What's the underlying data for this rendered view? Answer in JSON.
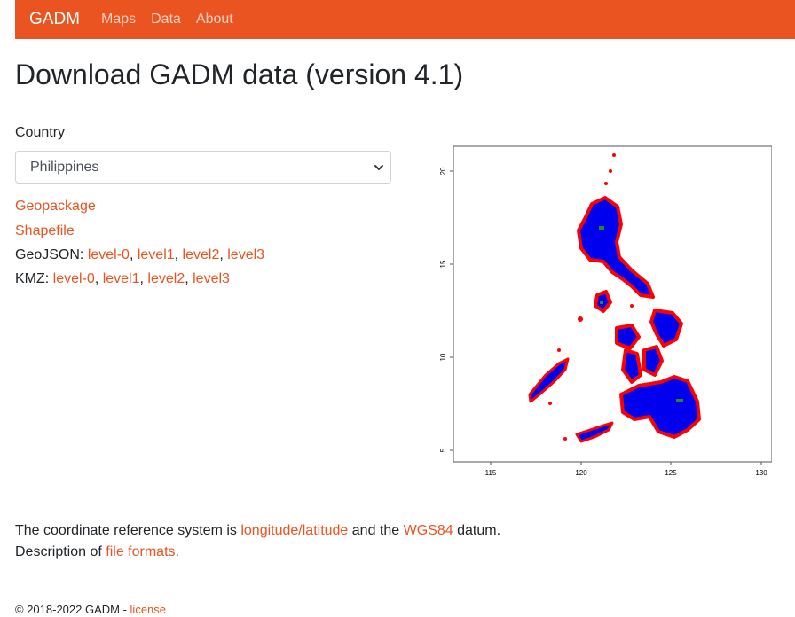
{
  "nav": {
    "brand": "GADM",
    "links": [
      "Maps",
      "Data",
      "About"
    ]
  },
  "page_title": "Download GADM data (version 4.1)",
  "country": {
    "label": "Country",
    "selected": "Philippines"
  },
  "downloads": {
    "geopackage": "Geopackage",
    "shapefile": "Shapefile",
    "geojson_label": "GeoJSON:",
    "kmz_label": "KMZ:",
    "levels": [
      "level-0",
      "level1",
      "level2",
      "level3"
    ]
  },
  "map": {
    "x_ticks": [
      "115",
      "120",
      "125",
      "130"
    ],
    "y_ticks": [
      "20",
      "15",
      "10",
      "5"
    ],
    "colors": {
      "fill": "#0000ee",
      "outline": "#ff0000",
      "inner": "#228b22"
    }
  },
  "crs": {
    "prefix": "The coordinate reference system is",
    "lonlat": "longitude/latitude",
    "middle": "and the",
    "datum_link": "WGS84",
    "suffix": "datum."
  },
  "formats": {
    "prefix": "Description of",
    "link": "file formats",
    "suffix": "."
  },
  "footer": {
    "copyright": "© 2018-2022 GADM -",
    "license": "license"
  }
}
